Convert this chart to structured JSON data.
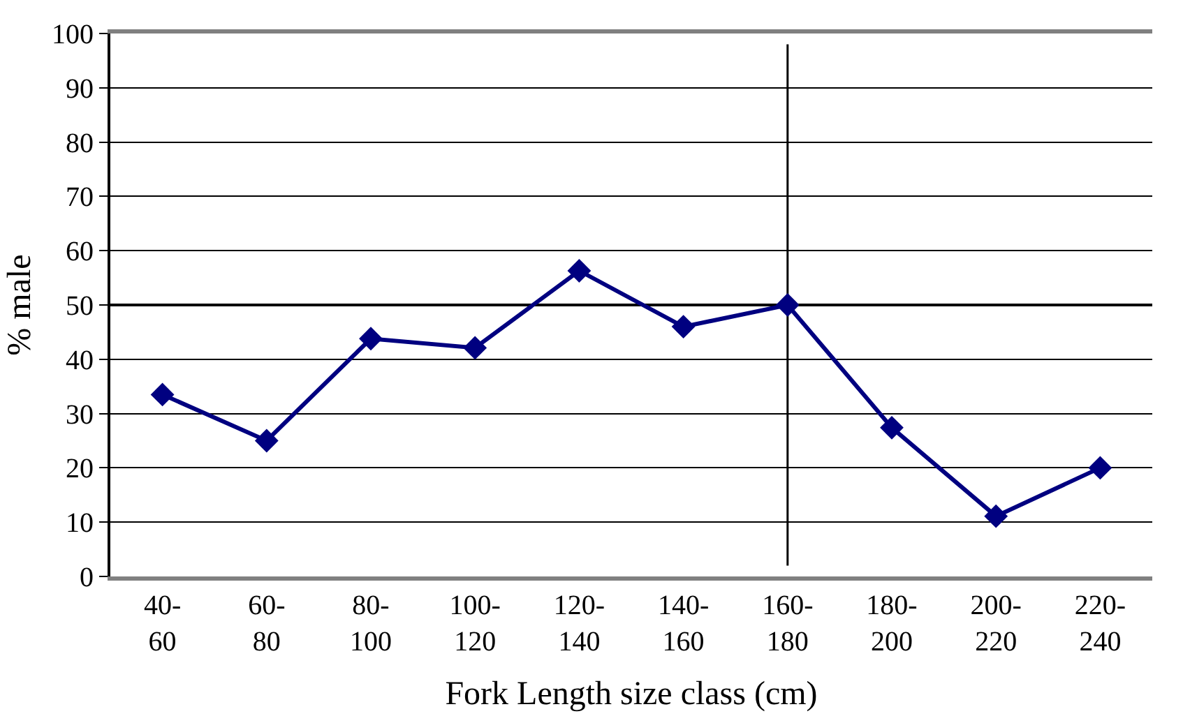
{
  "chart_data": {
    "type": "line",
    "xlabel": "Fork Length size class (cm)",
    "ylabel": "% male",
    "categories": [
      "40-60",
      "60-80",
      "80-100",
      "100-120",
      "120-140",
      "140-160",
      "160-180",
      "180-200",
      "200-220",
      "220-240"
    ],
    "series": [
      {
        "color": "#000080",
        "values": [
          33.5,
          25,
          43.8,
          42.1,
          56.3,
          46,
          50,
          27.4,
          11.1,
          20
        ]
      }
    ],
    "ylim": [
      0,
      100
    ],
    "yticks": [
      0,
      10,
      20,
      30,
      40,
      50,
      60,
      70,
      80,
      90,
      100
    ],
    "grid": "y",
    "marker": "diamond",
    "line_style": "solid",
    "legend": false,
    "ref_lines": [
      {
        "axis": "y",
        "value": 50,
        "color": "#000000"
      },
      {
        "axis": "x",
        "value": "160-180",
        "color": "#000000"
      }
    ]
  }
}
